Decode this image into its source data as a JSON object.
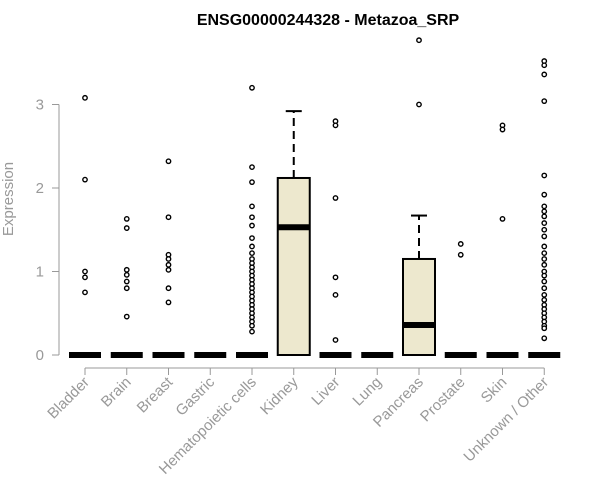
{
  "chart_data": {
    "type": "boxplot",
    "title": "ENSG00000244328 - Metazoa_SRP",
    "ylabel": "Expression",
    "xlabel": "",
    "ylim": [
      0,
      3.9
    ],
    "yticks": [
      0,
      1,
      2,
      3
    ],
    "box_color": "#EDE8CE",
    "categories": [
      "Bladder",
      "Brain",
      "Breast",
      "Gastric",
      "Hematopoietic cells",
      "Kidney",
      "Liver",
      "Lung",
      "Pancreas",
      "Prostate",
      "Skin",
      "Unknown / Other"
    ],
    "boxes": [
      {
        "category": "Bladder",
        "min": 0,
        "q1": 0,
        "median": 0,
        "q3": 0,
        "max": 0,
        "outliers": [
          3.08,
          2.1,
          1.0,
          0.93,
          0.75
        ]
      },
      {
        "category": "Brain",
        "min": 0,
        "q1": 0,
        "median": 0,
        "q3": 0,
        "max": 0,
        "outliers": [
          1.63,
          1.52,
          1.02,
          0.96,
          0.88,
          0.8,
          0.46
        ]
      },
      {
        "category": "Breast",
        "min": 0,
        "q1": 0,
        "median": 0,
        "q3": 0,
        "max": 0,
        "outliers": [
          2.32,
          1.65,
          1.2,
          1.15,
          1.08,
          1.02,
          0.8,
          0.63
        ]
      },
      {
        "category": "Gastric",
        "min": 0,
        "q1": 0,
        "median": 0,
        "q3": 0,
        "max": 0,
        "outliers": []
      },
      {
        "category": "Hematopoietic cells",
        "min": 0,
        "q1": 0,
        "median": 0,
        "q3": 0,
        "max": 0,
        "outliers": [
          3.2,
          2.25,
          2.07,
          1.78,
          1.65,
          1.55,
          1.4,
          1.3,
          1.22,
          1.15,
          1.1,
          1.05,
          1.0,
          0.95,
          0.9,
          0.85,
          0.8,
          0.75,
          0.7,
          0.65,
          0.6,
          0.55,
          0.5,
          0.45,
          0.4,
          0.35,
          0.28
        ]
      },
      {
        "category": "Kidney",
        "min": 0,
        "q1": 0,
        "median": 1.53,
        "q3": 2.12,
        "max": 2.92,
        "outliers": []
      },
      {
        "category": "Liver",
        "min": 0,
        "q1": 0,
        "median": 0,
        "q3": 0,
        "max": 0,
        "outliers": [
          2.8,
          2.75,
          1.88,
          0.93,
          0.72,
          0.18
        ]
      },
      {
        "category": "Lung",
        "min": 0,
        "q1": 0,
        "median": 0,
        "q3": 0,
        "max": 0,
        "outliers": []
      },
      {
        "category": "Pancreas",
        "min": 0,
        "q1": 0,
        "median": 0.36,
        "q3": 1.15,
        "max": 1.67,
        "outliers": [
          3.77,
          3.0
        ]
      },
      {
        "category": "Prostate",
        "min": 0,
        "q1": 0,
        "median": 0,
        "q3": 0,
        "max": 0,
        "outliers": [
          1.33,
          1.2
        ]
      },
      {
        "category": "Skin",
        "min": 0,
        "q1": 0,
        "median": 0,
        "q3": 0,
        "max": 0,
        "outliers": [
          2.75,
          2.7,
          1.63
        ]
      },
      {
        "category": "Unknown / Other",
        "min": 0,
        "q1": 0,
        "median": 0,
        "q3": 0,
        "max": 0,
        "outliers": [
          3.52,
          3.47,
          3.36,
          3.04,
          2.15,
          1.92,
          1.78,
          1.72,
          1.66,
          1.58,
          1.5,
          1.42,
          1.3,
          1.22,
          1.15,
          1.08,
          1.0,
          0.95,
          0.88,
          0.8,
          0.72,
          0.66,
          0.6,
          0.55,
          0.5,
          0.45,
          0.4,
          0.35,
          0.32,
          0.2
        ]
      }
    ]
  }
}
